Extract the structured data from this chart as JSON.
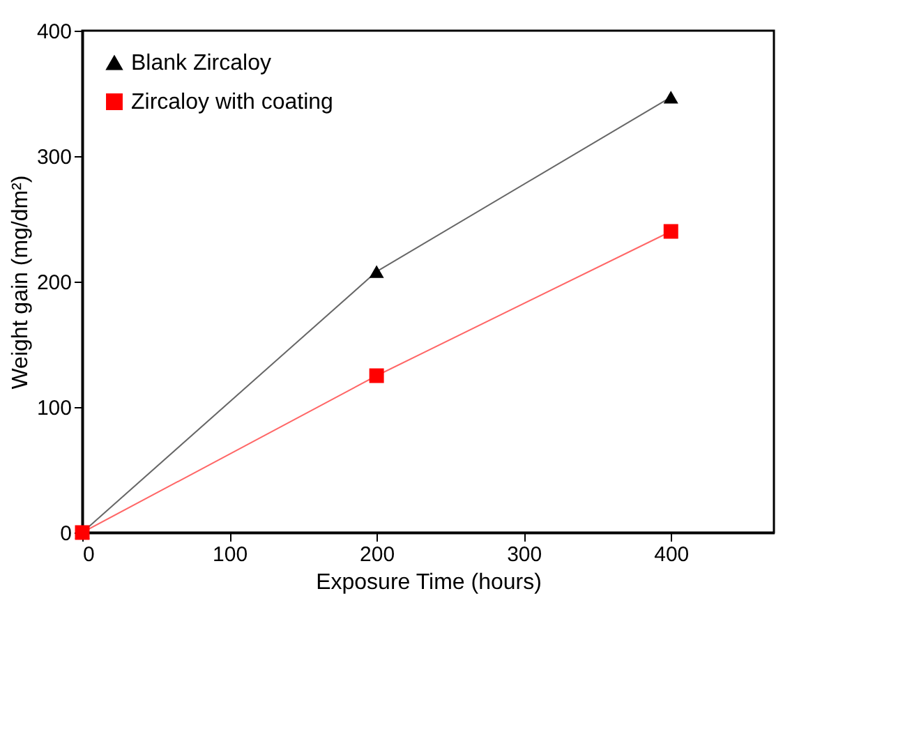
{
  "chart_data": {
    "type": "line",
    "xlabel": "Exposure Time (hours)",
    "ylabel": "Weight gain (mg/dm²)",
    "x": [
      0,
      200,
      400
    ],
    "series": [
      {
        "name": "Blank Zircaloy",
        "color": "#000000",
        "marker": "triangle",
        "values": [
          0,
          208,
          347
        ]
      },
      {
        "name": "Zircaloy with coating",
        "color": "#ff0000",
        "marker": "square",
        "values": [
          0,
          125,
          240
        ]
      }
    ],
    "xlim": [
      0,
      470
    ],
    "xticks": [
      0,
      100,
      200,
      300,
      400
    ],
    "ylim": [
      0,
      400
    ],
    "yticks": [
      0,
      100,
      200,
      300,
      400
    ],
    "grid": false,
    "legend": "top left",
    "line_style": "solid"
  }
}
